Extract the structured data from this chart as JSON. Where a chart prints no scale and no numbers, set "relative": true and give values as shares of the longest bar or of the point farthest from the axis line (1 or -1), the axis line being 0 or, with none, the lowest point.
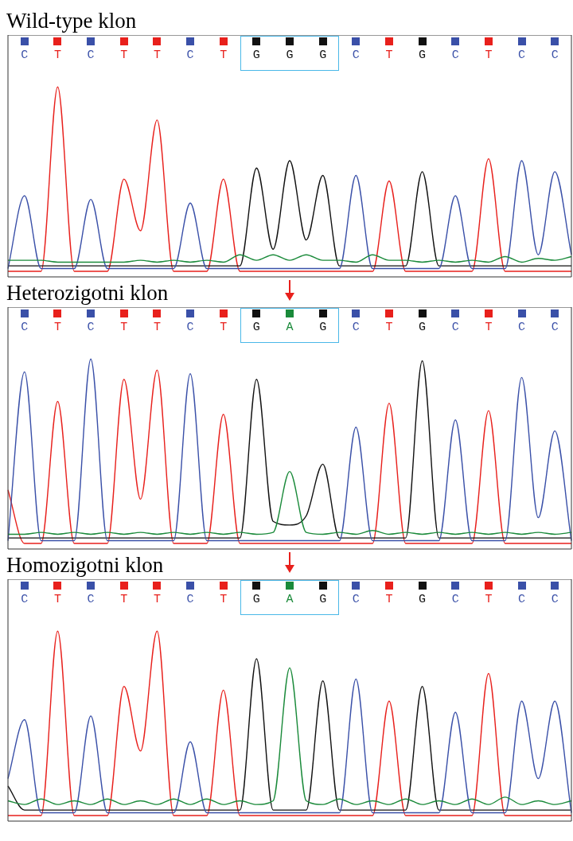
{
  "chart_data": [
    {
      "type": "line",
      "title": "Wild-type klon",
      "relative": true,
      "marker": "none",
      "categories": [
        null,
        "C",
        null,
        "T",
        null,
        "C",
        null,
        "T",
        null,
        "T",
        null,
        "C",
        null,
        "T",
        null,
        "G",
        null,
        "G",
        null,
        "G",
        null,
        "C",
        null,
        "T",
        null,
        "G",
        null,
        "C",
        null,
        "T",
        null,
        "C",
        null,
        "C",
        null
      ],
      "series": [
        {
          "color": "#1a8a3a",
          "values": [
            0.06,
            0.06,
            0.06,
            0.05,
            0.05,
            0.05,
            0.05,
            0.05,
            0.06,
            0.05,
            0.06,
            0.05,
            0.06,
            0.05,
            0.09,
            0.06,
            0.09,
            0.06,
            0.09,
            0.06,
            0.06,
            0.05,
            0.09,
            0.06,
            0.06,
            0.05,
            0.06,
            0.05,
            0.06,
            0.05,
            0.08,
            0.05,
            0.07,
            0.06,
            0.08
          ]
        },
        {
          "color": "#3a50a8",
          "values": [
            0.015,
            0.41,
            0.015,
            0.015,
            0.015,
            0.39,
            0.015,
            0.015,
            0.015,
            0.015,
            0.015,
            0.37,
            0.015,
            0.015,
            0.015,
            0.015,
            0.015,
            0.015,
            0.015,
            0.015,
            0.015,
            0.52,
            0.015,
            0.015,
            0.015,
            0.015,
            0.015,
            0.41,
            0.015,
            0.015,
            0.015,
            0.6,
            0.09,
            0.54,
            0.09
          ]
        },
        {
          "color": "#111111",
          "values": [
            0.03,
            0.03,
            0.03,
            0.03,
            0.03,
            0.03,
            0.03,
            0.03,
            0.03,
            0.03,
            0.03,
            0.03,
            0.03,
            0.03,
            0.03,
            0.56,
            0.12,
            0.6,
            0.17,
            0.52,
            0.03,
            0.03,
            0.03,
            0.03,
            0.03,
            0.54,
            0.03,
            0.03,
            0.03,
            0.03,
            0.03,
            0.03,
            0.03,
            0.03,
            0.03
          ]
        },
        {
          "color": "#e8201c",
          "values": [
            0,
            0,
            0,
            1.0,
            0,
            0,
            0,
            0.5,
            0.22,
            0.82,
            0,
            0,
            0,
            0.5,
            0,
            0,
            0,
            0,
            0,
            0,
            0,
            0,
            0,
            0.49,
            0,
            0,
            0,
            0,
            0,
            0.61,
            0,
            0,
            0,
            0,
            0
          ]
        }
      ]
    },
    {
      "type": "line",
      "title": "Heterozigotni klon",
      "relative": true,
      "marker": "none",
      "categories": [
        null,
        "C",
        null,
        "T",
        null,
        "C",
        null,
        "T",
        null,
        "T",
        null,
        "C",
        null,
        "T",
        null,
        "G",
        null,
        "A",
        null,
        "G",
        null,
        "C",
        null,
        "T",
        null,
        "G",
        null,
        "C",
        null,
        "T",
        null,
        "C",
        null,
        "C",
        null
      ],
      "series": [
        {
          "color": "#1a8a3a",
          "values": [
            0.05,
            0.05,
            0.06,
            0.05,
            0.06,
            0.05,
            0.06,
            0.05,
            0.06,
            0.05,
            0.06,
            0.05,
            0.06,
            0.05,
            0.06,
            0.05,
            0.06,
            0.39,
            0.06,
            0.05,
            0.06,
            0.05,
            0.07,
            0.05,
            0.06,
            0.05,
            0.06,
            0.05,
            0.06,
            0.05,
            0.06,
            0.05,
            0.06,
            0.05,
            0.06
          ]
        },
        {
          "color": "#3a50a8",
          "values": [
            0.015,
            0.93,
            0.015,
            0.015,
            0.015,
            1.0,
            0.015,
            0.015,
            0.015,
            0.015,
            0.015,
            0.92,
            0.015,
            0.015,
            0.015,
            0.015,
            0.015,
            0.015,
            0.015,
            0.015,
            0.015,
            0.63,
            0.015,
            0.015,
            0.015,
            0.015,
            0.015,
            0.67,
            0.015,
            0.015,
            0.015,
            0.9,
            0.14,
            0.61,
            0.015
          ]
        },
        {
          "color": "#111111",
          "values": [
            0.03,
            0.03,
            0.03,
            0.03,
            0.03,
            0.03,
            0.03,
            0.03,
            0.03,
            0.03,
            0.03,
            0.03,
            0.03,
            0.03,
            0.03,
            0.89,
            0.12,
            0.1,
            0.15,
            0.43,
            0.03,
            0.03,
            0.03,
            0.03,
            0.03,
            0.99,
            0.03,
            0.03,
            0.03,
            0.03,
            0.03,
            0.03,
            0.03,
            0.03,
            0.03
          ]
        },
        {
          "color": "#e8201c",
          "values": [
            0.29,
            0,
            0,
            0.77,
            0,
            0,
            0,
            0.89,
            0.24,
            0.94,
            0,
            0,
            0,
            0.7,
            0,
            0,
            0,
            0,
            0,
            0,
            0,
            0,
            0,
            0.76,
            0,
            0,
            0,
            0,
            0,
            0.72,
            0,
            0,
            0,
            0,
            0
          ]
        }
      ]
    },
    {
      "type": "line",
      "title": "Homozigotni klon",
      "relative": true,
      "marker": "none",
      "categories": [
        null,
        "C",
        null,
        "T",
        null,
        "C",
        null,
        "T",
        null,
        "T",
        null,
        "C",
        null,
        "T",
        null,
        "G",
        null,
        "A",
        null,
        "G",
        null,
        "C",
        null,
        "T",
        null,
        "G",
        null,
        "C",
        null,
        "T",
        null,
        "C",
        null,
        "C",
        null
      ],
      "series": [
        {
          "color": "#1a8a3a",
          "values": [
            0.08,
            0.06,
            0.09,
            0.06,
            0.08,
            0.06,
            0.09,
            0.06,
            0.08,
            0.06,
            0.09,
            0.06,
            0.09,
            0.06,
            0.08,
            0.06,
            0.08,
            0.8,
            0.08,
            0.06,
            0.09,
            0.06,
            0.08,
            0.06,
            0.09,
            0.06,
            0.08,
            0.06,
            0.09,
            0.06,
            0.1,
            0.06,
            0.08,
            0.06,
            0.08
          ]
        },
        {
          "color": "#3a50a8",
          "values": [
            0.2,
            0.52,
            0.015,
            0.015,
            0.015,
            0.54,
            0.015,
            0.015,
            0.015,
            0.015,
            0.015,
            0.4,
            0.015,
            0.015,
            0.015,
            0.015,
            0.015,
            0.015,
            0.015,
            0.015,
            0.015,
            0.74,
            0.015,
            0.015,
            0.015,
            0.015,
            0.015,
            0.56,
            0.015,
            0.015,
            0.015,
            0.62,
            0.2,
            0.62,
            0.015
          ]
        },
        {
          "color": "#111111",
          "values": [
            0.16,
            0.03,
            0.03,
            0.03,
            0.03,
            0.03,
            0.03,
            0.03,
            0.03,
            0.03,
            0.03,
            0.03,
            0.03,
            0.03,
            0.03,
            0.85,
            0.03,
            0.03,
            0.03,
            0.73,
            0.03,
            0.03,
            0.03,
            0.03,
            0.03,
            0.7,
            0.03,
            0.03,
            0.03,
            0.03,
            0.03,
            0.03,
            0.03,
            0.03,
            0.03
          ]
        },
        {
          "color": "#e8201c",
          "values": [
            0,
            0,
            0,
            1.0,
            0,
            0,
            0,
            0.7,
            0.35,
            1.0,
            0,
            0,
            0,
            0.68,
            0,
            0,
            0,
            0,
            0,
            0,
            0,
            0,
            0,
            0.62,
            0,
            0,
            0,
            0,
            0,
            0.77,
            0,
            0,
            0,
            0,
            0
          ]
        }
      ]
    }
  ]
}
